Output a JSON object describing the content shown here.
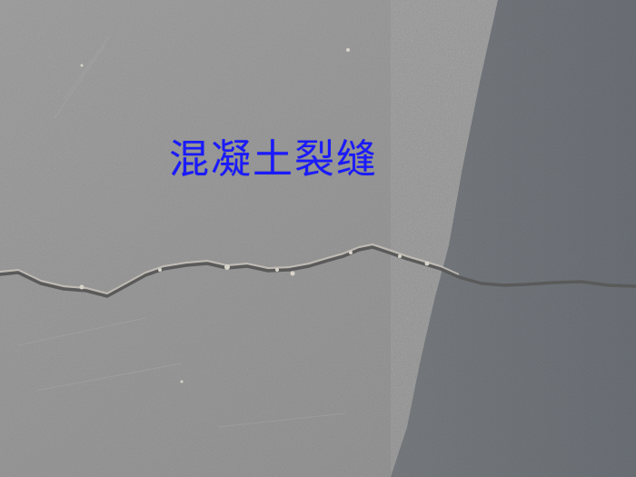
{
  "caption": {
    "text": "混凝土裂缝",
    "color": "#1a1aff"
  },
  "scene": {
    "subject": "concrete-crack",
    "sunlit_color": "#9c9c9c",
    "shadow_color": "#6f747a"
  }
}
